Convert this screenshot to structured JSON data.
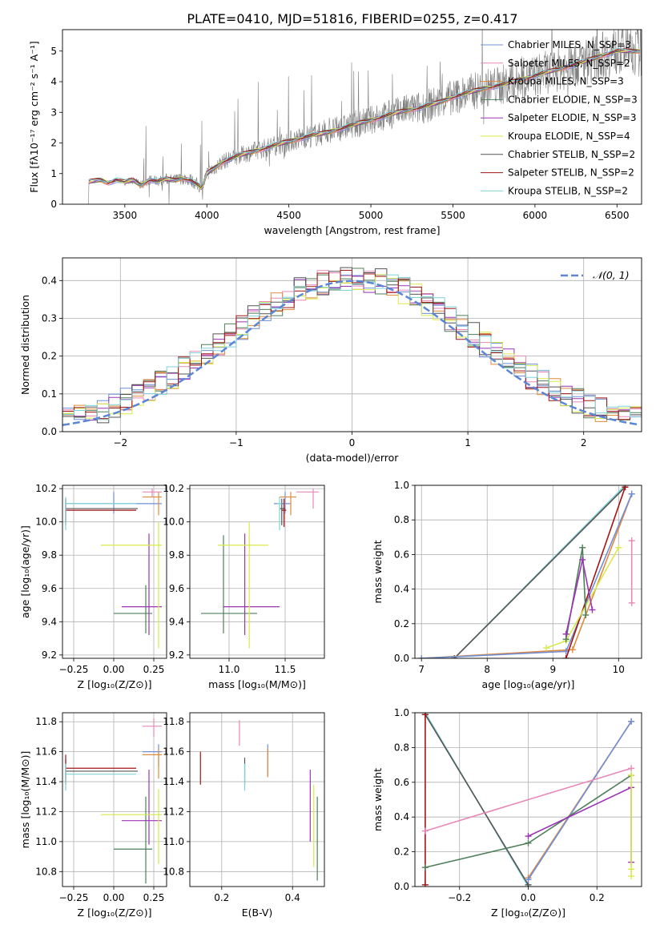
{
  "figure_title": "PLATE=0410, MJD=51816, FIBERID=0255, z=0.417",
  "colors": {
    "chabrier_miles": "#6f8fd8",
    "salpeter_miles": "#e887b8",
    "kroupa_miles": "#e08a3c",
    "chabrier_elodie": "#4f7f5a",
    "salpeter_elodie": "#9b35b5",
    "kroupa_elodie": "#d8ea4a",
    "chabrier_stelib": "#555555",
    "salpeter_stelib": "#a31515",
    "kroupa_stelib": "#7fd3d8",
    "data": "#7f7f7f",
    "normal": "#5b86d6"
  },
  "chart_data": [
    {
      "id": "spectrum",
      "type": "line",
      "xlabel": "wavelength [Angstrom, rest frame]",
      "ylabel": "Flux [fλ10⁻¹⁷ erg cm⁻² s⁻¹ A⁻¹]",
      "xlim": [
        3120,
        6650
      ],
      "ylim": [
        0,
        5.7
      ],
      "xticks": [
        3500,
        4000,
        4500,
        5000,
        5500,
        6000,
        6500
      ],
      "yticks": [
        0,
        1,
        2,
        3,
        4,
        5
      ],
      "grid": false,
      "legend_position": "right",
      "legend": [
        "Chabrier MILES, N_SSP=3",
        "Salpeter MILES, N_SSP=2",
        "Kroupa MILES, N_SSP=3",
        "Chabrier ELODIE, N_SSP=3",
        "Salpeter ELODIE, N_SSP=3",
        "Kroupa ELODIE, N_SSP=4",
        "Chabrier STELIB, N_SSP=2",
        "Salpeter STELIB, N_SSP=2",
        "Kroupa STELIB, N_SSP=2"
      ],
      "continuum_x": [
        3270,
        3280,
        3300,
        3350,
        3400,
        3450,
        3500,
        3550,
        3600,
        3650,
        3700,
        3750,
        3800,
        3850,
        3900,
        3950,
        3970,
        4000,
        4100,
        4200,
        4300,
        4400,
        4500,
        4600,
        4700,
        4800,
        4900,
        5000,
        5100,
        5200,
        5300,
        5400,
        5500,
        5600,
        5700,
        5800,
        5900,
        6000,
        6100,
        6200,
        6300,
        6400,
        6500
      ],
      "continuum_y": [
        0.0,
        0.72,
        0.75,
        0.8,
        0.7,
        0.8,
        0.72,
        0.78,
        0.62,
        0.8,
        0.75,
        0.82,
        0.78,
        0.85,
        0.8,
        0.6,
        0.5,
        1.0,
        1.4,
        1.6,
        1.75,
        1.9,
        2.05,
        2.2,
        2.3,
        2.45,
        2.6,
        2.75,
        2.9,
        3.05,
        3.15,
        3.3,
        3.5,
        3.65,
        3.8,
        3.9,
        4.05,
        4.2,
        4.35,
        4.5,
        4.65,
        4.85,
        5.0
      ]
    },
    {
      "id": "residuals",
      "type": "bar",
      "xlabel": "(data-model)/error",
      "ylabel": "Normed distribution",
      "xlim": [
        -2.5,
        2.5
      ],
      "ylim": [
        0,
        0.46
      ],
      "xticks": [
        -2,
        -1,
        0,
        1,
        2
      ],
      "yticks": [
        0.0,
        0.1,
        0.2,
        0.3,
        0.4
      ],
      "grid": true,
      "legend": [
        "𝒩(0, 1)"
      ],
      "legend_position": "top-right",
      "bin_width": 0.1
    },
    {
      "id": "age_vs_Z",
      "type": "scatter",
      "xlabel": "Z [log₁₀(Z/Z⊙)]",
      "ylabel": "age  [log₁₀(age/yr)]",
      "xlim": [
        -0.32,
        0.33
      ],
      "ylim": [
        9.18,
        10.22
      ],
      "xticks": [
        -0.25,
        0.0,
        0.25
      ],
      "yticks": [
        9.2,
        9.4,
        9.6,
        9.8,
        10.0,
        10.2
      ],
      "grid": true,
      "points": [
        {
          "m": "chabrier_miles",
          "x": 0.0,
          "y": 10.11,
          "xl": -0.3,
          "xh": 0.3,
          "yl": 10.05,
          "yh": 10.18
        },
        {
          "m": "salpeter_miles",
          "x": 0.24,
          "y": 10.18,
          "xl": 0.18,
          "xh": 0.3,
          "yl": 10.15,
          "yh": 10.2
        },
        {
          "m": "kroupa_miles",
          "x": 0.28,
          "y": 10.15,
          "xl": 0.18,
          "xh": 0.3,
          "yl": 10.04,
          "yh": 10.18
        },
        {
          "m": "chabrier_elodie",
          "x": 0.2,
          "y": 9.45,
          "xl": 0.0,
          "xh": 0.24,
          "yl": 9.33,
          "yh": 9.62
        },
        {
          "m": "salpeter_elodie",
          "x": 0.22,
          "y": 9.49,
          "xl": 0.05,
          "xh": 0.3,
          "yl": 9.32,
          "yh": 9.93
        },
        {
          "m": "kroupa_elodie",
          "x": 0.28,
          "y": 9.86,
          "xl": -0.08,
          "xh": 0.3,
          "yl": 9.24,
          "yh": 10.0
        },
        {
          "m": "chabrier_stelib",
          "x": -0.3,
          "y": 10.08,
          "xl": -0.3,
          "xh": 0.15,
          "yl": 9.98,
          "yh": 10.14
        },
        {
          "m": "salpeter_stelib",
          "x": -0.3,
          "y": 10.07,
          "xl": -0.3,
          "xh": 0.14,
          "yl": 10.0,
          "yh": 10.14
        },
        {
          "m": "kroupa_stelib",
          "x": -0.3,
          "y": 10.11,
          "xl": -0.3,
          "xh": 0.14,
          "yl": 9.95,
          "yh": 10.15
        }
      ]
    },
    {
      "id": "age_vs_mass",
      "type": "scatter",
      "xlabel": "mass [log₁₀(M/M⊙)]",
      "ylabel": "",
      "xlim": [
        10.65,
        11.85
      ],
      "ylim": [
        9.18,
        10.22
      ],
      "xticks": [
        11.0,
        11.5
      ],
      "yticks": [
        9.2,
        9.4,
        9.6,
        9.8,
        10.0,
        10.2
      ],
      "grid": true,
      "points": [
        {
          "m": "chabrier_miles",
          "x": 11.5,
          "y": 10.11,
          "xl": 11.4,
          "xh": 11.55,
          "yl": 10.05,
          "yh": 10.18
        },
        {
          "m": "salpeter_miles",
          "x": 11.75,
          "y": 10.18,
          "xl": 11.6,
          "xh": 11.8,
          "yl": 10.08,
          "yh": 10.2
        },
        {
          "m": "kroupa_miles",
          "x": 11.55,
          "y": 10.15,
          "xl": 11.45,
          "xh": 11.6,
          "yl": 10.04,
          "yh": 10.18
        },
        {
          "m": "chabrier_elodie",
          "x": 10.95,
          "y": 9.45,
          "xl": 10.75,
          "xh": 11.25,
          "yl": 9.33,
          "yh": 9.92
        },
        {
          "m": "salpeter_elodie",
          "x": 11.14,
          "y": 9.49,
          "xl": 10.95,
          "xh": 11.45,
          "yl": 9.32,
          "yh": 9.93
        },
        {
          "m": "kroupa_elodie",
          "x": 11.18,
          "y": 9.86,
          "xl": 10.9,
          "xh": 11.35,
          "yl": 9.24,
          "yh": 10.0
        },
        {
          "m": "chabrier_stelib",
          "x": 11.47,
          "y": 10.08,
          "xl": 11.45,
          "xh": 11.5,
          "yl": 9.98,
          "yh": 10.14
        },
        {
          "m": "salpeter_stelib",
          "x": 11.49,
          "y": 10.07,
          "xl": 11.47,
          "xh": 11.51,
          "yl": 9.97,
          "yh": 10.14
        },
        {
          "m": "kroupa_stelib",
          "x": 11.45,
          "y": 10.11,
          "xl": 11.43,
          "xh": 11.47,
          "yl": 9.95,
          "yh": 10.15
        }
      ]
    },
    {
      "id": "mass_weight_vs_age",
      "type": "line",
      "xlabel": "age  [log₁₀(age/yr)]",
      "ylabel": "mass weight",
      "xlim": [
        6.9,
        10.35
      ],
      "ylim": [
        0,
        1.0
      ],
      "xticks": [
        7,
        8,
        9,
        10
      ],
      "yticks": [
        0.0,
        0.2,
        0.4,
        0.6,
        0.8,
        1.0
      ],
      "grid": true,
      "series": [
        {
          "m": "kroupa_stelib",
          "x": [
            7.5,
            10.1
          ],
          "y": [
            0.0,
            1.0
          ]
        },
        {
          "m": "chabrier_stelib",
          "x": [
            7.5,
            10.1
          ],
          "y": [
            0.0,
            0.99
          ]
        },
        {
          "m": "kroupa_miles",
          "x": [
            7.0,
            9.3,
            10.2
          ],
          "y": [
            0.0,
            0.05,
            0.95
          ]
        },
        {
          "m": "chabrier_miles",
          "x": [
            7.0,
            9.2,
            10.2
          ],
          "y": [
            0.0,
            0.04,
            0.95
          ]
        },
        {
          "m": "salpeter_stelib",
          "x": [
            9.2,
            10.1
          ],
          "y": [
            0.0,
            0.99
          ]
        },
        {
          "m": "kroupa_elodie",
          "x": [
            8.9,
            9.2,
            10.0
          ],
          "y": [
            0.06,
            0.1,
            0.64
          ]
        },
        {
          "m": "chabrier_elodie",
          "x": [
            9.2,
            9.45,
            9.5
          ],
          "y": [
            0.11,
            0.64,
            0.25
          ]
        },
        {
          "m": "salpeter_elodie",
          "x": [
            9.2,
            9.45,
            9.6
          ],
          "y": [
            0.14,
            0.57,
            0.28
          ]
        },
        {
          "m": "salpeter_miles",
          "x": [
            10.2,
            10.2
          ],
          "y": [
            0.32,
            0.68
          ]
        }
      ]
    },
    {
      "id": "mass_vs_Z",
      "type": "scatter",
      "xlabel": "Z [log₁₀(Z/Z⊙)]",
      "ylabel": "mass [log₁₀(M/M⊙)]",
      "xlim": [
        -0.32,
        0.33
      ],
      "ylim": [
        10.7,
        11.86
      ],
      "xticks": [
        -0.25,
        0.0,
        0.25
      ],
      "yticks": [
        10.8,
        11.0,
        11.2,
        11.4,
        11.6,
        11.8
      ],
      "grid": true,
      "points": [
        {
          "m": "chabrier_miles",
          "x": 0.28,
          "y": 11.6,
          "xl": 0.18,
          "xh": 0.3,
          "yl": 11.5,
          "yh": 11.65
        },
        {
          "m": "salpeter_miles",
          "x": 0.25,
          "y": 11.77,
          "xl": 0.18,
          "xh": 0.3,
          "yl": 11.7,
          "yh": 11.82
        },
        {
          "m": "kroupa_miles",
          "x": 0.28,
          "y": 11.58,
          "xl": 0.18,
          "xh": 0.3,
          "yl": 11.42,
          "yh": 11.62
        },
        {
          "m": "chabrier_elodie",
          "x": 0.2,
          "y": 10.95,
          "xl": 0.0,
          "xh": 0.24,
          "yl": 10.72,
          "yh": 11.3
        },
        {
          "m": "salpeter_elodie",
          "x": 0.22,
          "y": 11.14,
          "xl": 0.05,
          "xh": 0.3,
          "yl": 10.98,
          "yh": 11.48
        },
        {
          "m": "kroupa_elodie",
          "x": 0.28,
          "y": 11.18,
          "xl": -0.08,
          "xh": 0.3,
          "yl": 10.85,
          "yh": 11.35
        },
        {
          "m": "chabrier_stelib",
          "x": -0.3,
          "y": 11.47,
          "xl": -0.3,
          "xh": 0.15,
          "yl": 11.4,
          "yh": 11.55
        },
        {
          "m": "salpeter_stelib",
          "x": -0.3,
          "y": 11.49,
          "xl": -0.3,
          "xh": 0.14,
          "yl": 11.38,
          "yh": 11.58
        },
        {
          "m": "kroupa_stelib",
          "x": -0.3,
          "y": 11.45,
          "xl": -0.3,
          "xh": 0.14,
          "yl": 11.34,
          "yh": 11.52
        }
      ]
    },
    {
      "id": "mass_vs_ebv",
      "type": "scatter",
      "xlabel": "E(B-V)",
      "ylabel": "",
      "xlim": [
        0.11,
        0.49
      ],
      "ylim": [
        10.7,
        11.86
      ],
      "xticks": [
        0.2,
        0.4
      ],
      "yticks": [
        10.8,
        11.0,
        11.2,
        11.4,
        11.6,
        11.8
      ],
      "grid": true,
      "points": [
        {
          "m": "chabrier_miles",
          "x": 0.33,
          "y": 11.55,
          "yl": 11.44,
          "yh": 11.65
        },
        {
          "m": "salpeter_miles",
          "x": 0.25,
          "y": 11.72,
          "yl": 11.64,
          "yh": 11.81
        },
        {
          "m": "kroupa_miles",
          "x": 0.33,
          "y": 11.5,
          "yl": 11.43,
          "yh": 11.62
        },
        {
          "m": "chabrier_elodie",
          "x": 0.47,
          "y": 11.0,
          "yl": 10.74,
          "yh": 11.3
        },
        {
          "m": "salpeter_elodie",
          "x": 0.45,
          "y": 11.2,
          "yl": 11.0,
          "yh": 11.48
        },
        {
          "m": "kroupa_elodie",
          "x": 0.46,
          "y": 11.1,
          "yl": 10.83,
          "yh": 11.38
        },
        {
          "m": "chabrier_stelib",
          "x": 0.265,
          "y": 11.47,
          "yl": 11.38,
          "yh": 11.56
        },
        {
          "m": "salpeter_stelib",
          "x": 0.14,
          "y": 11.5,
          "yl": 11.38,
          "yh": 11.6
        },
        {
          "m": "kroupa_stelib",
          "x": 0.265,
          "y": 11.42,
          "yl": 11.34,
          "yh": 11.52
        }
      ]
    },
    {
      "id": "mass_weight_vs_Z",
      "type": "line",
      "xlabel": "Z [log₁₀(Z/Z⊙)]",
      "ylabel": "mass weight",
      "xlim": [
        -0.33,
        0.33
      ],
      "ylim": [
        0,
        1.0
      ],
      "xticks": [
        -0.2,
        0.0,
        0.2
      ],
      "yticks": [
        0.0,
        0.2,
        0.4,
        0.6,
        0.8,
        1.0
      ],
      "grid": true,
      "series": [
        {
          "m": "kroupa_stelib",
          "x": [
            -0.3,
            0.0
          ],
          "y": [
            1.0,
            0.0
          ]
        },
        {
          "m": "chabrier_stelib",
          "x": [
            -0.3,
            0.0
          ],
          "y": [
            0.99,
            0.01
          ]
        },
        {
          "m": "salpeter_stelib",
          "x": [
            -0.3,
            -0.3
          ],
          "y": [
            0.01,
            0.99
          ]
        },
        {
          "m": "kroupa_miles",
          "x": [
            0.0,
            0.3
          ],
          "y": [
            0.05,
            0.95
          ]
        },
        {
          "m": "chabrier_miles",
          "x": [
            0.0,
            0.3
          ],
          "y": [
            0.04,
            0.95
          ]
        },
        {
          "m": "salpeter_miles",
          "x": [
            -0.3,
            0.3
          ],
          "y": [
            0.32,
            0.68
          ]
        },
        {
          "m": "chabrier_elodie",
          "x": [
            -0.3,
            0.0,
            0.3
          ],
          "y": [
            0.11,
            0.25,
            0.64
          ]
        },
        {
          "m": "salpeter_elodie",
          "x": [
            0.0,
            0.3,
            0.3
          ],
          "y": [
            0.29,
            0.57,
            0.14
          ]
        },
        {
          "m": "kroupa_elodie",
          "x": [
            0.3,
            0.3,
            0.3
          ],
          "y": [
            0.06,
            0.1,
            0.64
          ]
        }
      ]
    }
  ]
}
